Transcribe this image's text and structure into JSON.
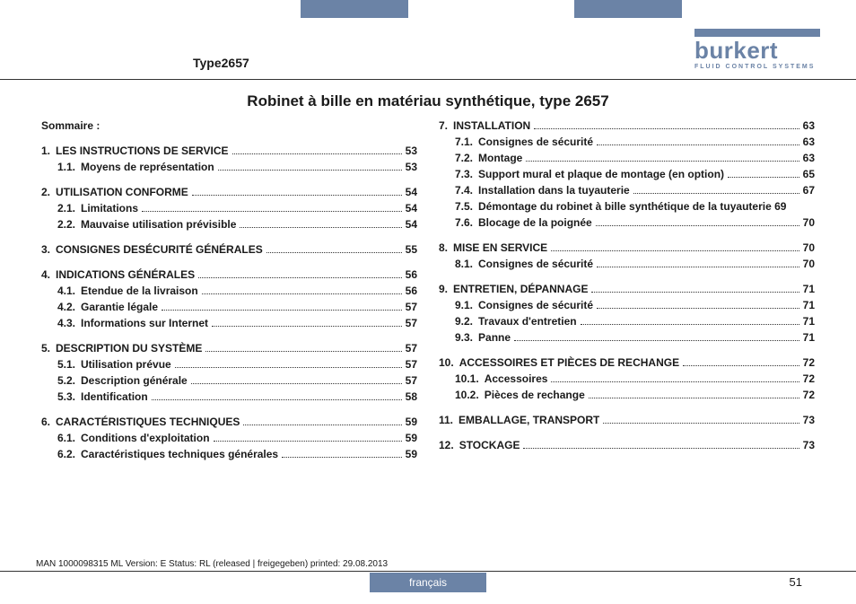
{
  "header": {
    "type_label": "Type2657",
    "logo_name": "burkert",
    "logo_tagline": "FLUID CONTROL SYSTEMS"
  },
  "title": "Robinet à bille en matériau synthétique, type 2657",
  "sommaire_label": "Sommaire :",
  "colors": {
    "accent": "#6b83a6",
    "text": "#1a1a1a"
  },
  "toc": {
    "left": [
      {
        "num": "1.",
        "label": "LES INSTRUCTIONS DE SERVICE",
        "page": "53",
        "subs": [
          {
            "num": "1.1.",
            "label": "Moyens de représentation",
            "page": "53"
          }
        ]
      },
      {
        "num": "2.",
        "label": "UTILISATION CONFORME",
        "page": "54",
        "subs": [
          {
            "num": "2.1.",
            "label": "Limitations",
            "page": "54"
          },
          {
            "num": "2.2.",
            "label": "Mauvaise utilisation prévisible",
            "page": "54"
          }
        ]
      },
      {
        "num": "3.",
        "label": "CONSIGNES DESÉCURITÉ GÉNÉRALES",
        "page": "55",
        "subs": []
      },
      {
        "num": "4.",
        "label": "INDICATIONS GÉNÉRALES",
        "page": "56",
        "subs": [
          {
            "num": "4.1.",
            "label": "Etendue de la livraison",
            "page": "56"
          },
          {
            "num": "4.2.",
            "label": "Garantie légale",
            "page": "57"
          },
          {
            "num": "4.3.",
            "label": "Informations sur Internet",
            "page": "57"
          }
        ]
      },
      {
        "num": "5.",
        "label": "DESCRIPTION DU SYSTÈME",
        "page": "57",
        "subs": [
          {
            "num": "5.1.",
            "label": "Utilisation prévue",
            "page": "57"
          },
          {
            "num": "5.2.",
            "label": "Description générale",
            "page": "57"
          },
          {
            "num": "5.3.",
            "label": "Identification",
            "page": "58"
          }
        ]
      },
      {
        "num": "6.",
        "label": "CARACTÉRISTIQUES TECHNIQUES",
        "page": "59",
        "subs": [
          {
            "num": "6.1.",
            "label": "Conditions d'exploitation",
            "page": "59"
          },
          {
            "num": "6.2.",
            "label": "Caractéristiques techniques générales",
            "page": "59"
          }
        ]
      }
    ],
    "right": [
      {
        "num": "7.",
        "label": "INSTALLATION",
        "page": "63",
        "subs": [
          {
            "num": "7.1.",
            "label": "Consignes de sécurité",
            "page": "63"
          },
          {
            "num": "7.2.",
            "label": "Montage",
            "page": "63"
          },
          {
            "num": "7.3.",
            "label": "Support mural et plaque de montage (en option)",
            "page": "65"
          },
          {
            "num": "7.4.",
            "label": "Installation dans la tuyauterie",
            "page": "67"
          },
          {
            "num": "7.5.",
            "label": "Démontage du robinet à bille synthétique de la tuyauterie",
            "page": "69",
            "multi": true
          },
          {
            "num": "7.6.",
            "label": "Blocage de la poignée",
            "page": "70"
          }
        ]
      },
      {
        "num": "8.",
        "label": "MISE EN SERVICE",
        "page": "70",
        "subs": [
          {
            "num": "8.1.",
            "label": "Consignes de sécurité",
            "page": "70"
          }
        ]
      },
      {
        "num": "9.",
        "label": "ENTRETIEN, DÉPANNAGE",
        "page": "71",
        "subs": [
          {
            "num": "9.1.",
            "label": "Consignes de sécurité",
            "page": "71"
          },
          {
            "num": "9.2.",
            "label": "Travaux d'entretien",
            "page": "71"
          },
          {
            "num": "9.3.",
            "label": "Panne",
            "page": "71"
          }
        ]
      },
      {
        "num": "10.",
        "label": "ACCESSOIRES ET PIÈCES DE RECHANGE",
        "page": "72",
        "subs": [
          {
            "num": "10.1.",
            "label": "Accessoires",
            "page": "72"
          },
          {
            "num": "10.2.",
            "label": "Pièces de rechange",
            "page": "72"
          }
        ]
      },
      {
        "num": "11.",
        "label": "EMBALLAGE, TRANSPORT",
        "page": "73",
        "subs": []
      },
      {
        "num": "12.",
        "label": "STOCKAGE",
        "page": "73",
        "subs": []
      }
    ]
  },
  "footer": {
    "meta": "MAN  1000098315  ML  Version: E Status: RL (released | freigegeben)  printed: 29.08.2013",
    "language": "français",
    "page_number": "51"
  }
}
